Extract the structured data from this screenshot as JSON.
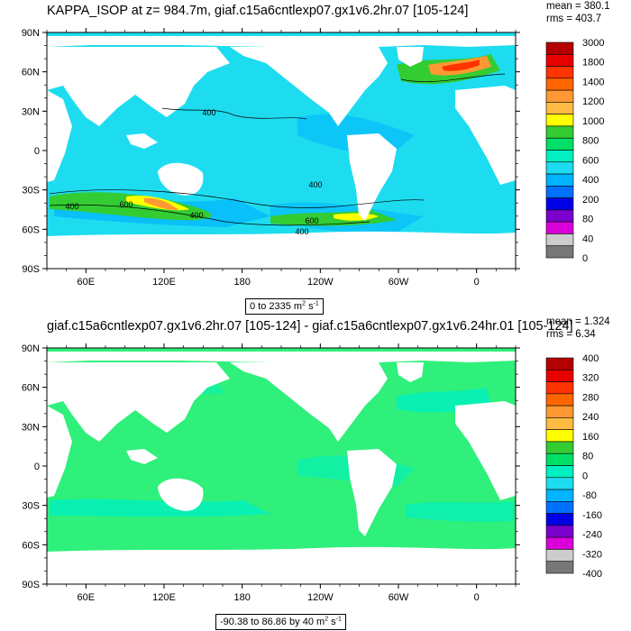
{
  "panels": [
    {
      "title": "KAPPA_ISOP at z= 984.7m, giaf.c15a6cntlexp07.gx1v6.2hr.07 [105-124]",
      "mean": "mean = 380.1",
      "rms": "rms = 403.7",
      "range_text": "0 to 2335 m",
      "range_unit_sup": "2",
      "range_unit_tail": "s",
      "range_unit_tail_sup": "-1",
      "lat_labels": [
        "90N",
        "60N",
        "30N",
        "0",
        "30S",
        "60S",
        "90S"
      ],
      "lon_labels": [
        "60E",
        "120E",
        "180",
        "120W",
        "60W",
        "0"
      ],
      "colorbar_labels": [
        "3000",
        "1800",
        "1400",
        "1200",
        "1000",
        "800",
        "600",
        "400",
        "200",
        "80",
        "40",
        "0"
      ],
      "contour_labels": [
        "400",
        "400",
        "400",
        "600",
        "400",
        "600",
        "400"
      ]
    },
    {
      "title": "giaf.c15a6cntlexp07.gx1v6.2hr.07 [105-124] - giaf.c15a6cntlexp07.gx1v6.24hr.01 [105-124]",
      "mean": "mean = 1.324",
      "rms": "rms = 6.34",
      "range_text": "-90.38 to 86.86 by 40 m",
      "range_unit_sup": "2",
      "range_unit_tail": "s",
      "range_unit_tail_sup": "-1",
      "lat_labels": [
        "90N",
        "60N",
        "30N",
        "0",
        "30S",
        "60S",
        "90S"
      ],
      "lon_labels": [
        "60E",
        "120E",
        "180",
        "120W",
        "60W",
        "0"
      ],
      "colorbar_labels": [
        "400",
        "320",
        "280",
        "240",
        "160",
        "80",
        "0",
        "-80",
        "-160",
        "-240",
        "-320",
        "-400"
      ]
    }
  ],
  "colors": {
    "land": "#ffffff",
    "ocean_top": "#1edcf0",
    "ocean_bottom": "#2ff07a",
    "colorbar": [
      "#b30000",
      "#e60000",
      "#ff3300",
      "#ff6600",
      "#ff9933",
      "#ffbb44",
      "#ffff00",
      "#33cc33",
      "#00e066",
      "#00f0c0",
      "#1edcf0",
      "#00b4ff",
      "#0070ff",
      "#0000e6",
      "#7a00cc",
      "#d900d9",
      "#cccccc",
      "#777777"
    ]
  }
}
